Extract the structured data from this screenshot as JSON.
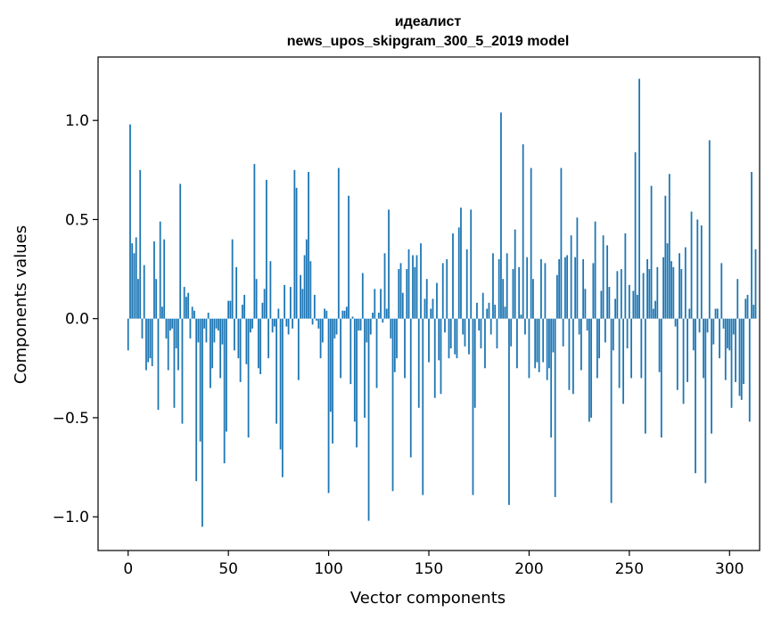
{
  "chart_data": {
    "type": "bar",
    "title_line1": "идеалист",
    "title_line2": "news_upos_skipgram_300_5_2019 model",
    "xlabel": "Vector components",
    "ylabel": "Components values",
    "xlim": [
      -15,
      315
    ],
    "ylim": [
      -1.17,
      1.32
    ],
    "xticks": [
      0,
      50,
      100,
      150,
      200,
      250,
      300
    ],
    "xtick_labels": [
      "0",
      "50",
      "100",
      "150",
      "200",
      "250",
      "300"
    ],
    "yticks": [
      -1.0,
      -0.5,
      0.0,
      0.5,
      1.0
    ],
    "ytick_labels": [
      "−1.0",
      "−0.5",
      "0.0",
      "0.5",
      "1.0"
    ],
    "bar_color": "#1f77b4",
    "grid": false,
    "legend": "none",
    "values": [
      -0.16,
      0.98,
      0.38,
      0.33,
      0.41,
      0.2,
      0.75,
      -0.1,
      0.27,
      -0.26,
      -0.22,
      -0.2,
      -0.24,
      0.39,
      0.2,
      -0.46,
      0.49,
      0.06,
      0.4,
      -0.1,
      -0.26,
      -0.06,
      -0.05,
      -0.45,
      -0.15,
      -0.26,
      0.68,
      -0.53,
      0.16,
      0.11,
      0.13,
      -0.1,
      0.06,
      0.04,
      -0.82,
      -0.12,
      -0.62,
      -1.05,
      -0.05,
      -0.12,
      0.03,
      -0.35,
      -0.25,
      -0.12,
      -0.05,
      -0.06,
      -0.3,
      -0.13,
      -0.73,
      -0.57,
      0.09,
      0.09,
      0.4,
      -0.16,
      0.26,
      -0.2,
      -0.32,
      0.07,
      0.12,
      -0.23,
      -0.6,
      -0.07,
      -0.05,
      0.78,
      0.2,
      -0.25,
      -0.28,
      0.08,
      0.15,
      0.7,
      -0.2,
      0.29,
      -0.07,
      -0.04,
      -0.53,
      0.05,
      -0.66,
      -0.8,
      0.17,
      -0.04,
      -0.08,
      0.16,
      -0.05,
      0.75,
      0.66,
      -0.31,
      0.22,
      0.15,
      0.32,
      0.4,
      0.74,
      0.29,
      -0.03,
      0.12,
      -0.01,
      -0.05,
      -0.2,
      -0.12,
      0.05,
      0.04,
      -0.88,
      -0.47,
      -0.63,
      -0.1,
      -0.08,
      0.76,
      -0.3,
      0.04,
      0.04,
      0.06,
      0.62,
      -0.33,
      0.01,
      -0.52,
      -0.65,
      -0.06,
      -0.06,
      0.23,
      -0.5,
      -0.12,
      -1.02,
      -0.08,
      0.03,
      0.15,
      -0.35,
      0.03,
      0.15,
      -0.02,
      0.33,
      0.05,
      0.55,
      -0.1,
      -0.87,
      -0.27,
      -0.2,
      0.25,
      0.28,
      0.13,
      -0.3,
      0.25,
      0.35,
      -0.7,
      0.32,
      0.26,
      0.32,
      -0.45,
      0.38,
      -0.89,
      0.1,
      0.2,
      -0.22,
      0.05,
      0.1,
      -0.4,
      0.18,
      -0.21,
      -0.38,
      0.28,
      -0.07,
      0.3,
      -0.2,
      -0.15,
      0.43,
      -0.18,
      -0.2,
      0.46,
      0.56,
      -0.08,
      -0.14,
      0.35,
      -0.18,
      0.55,
      -0.89,
      -0.45,
      0.08,
      -0.06,
      -0.15,
      0.13,
      -0.25,
      0.05,
      0.08,
      -0.08,
      0.33,
      0.07,
      -0.15,
      0.3,
      1.04,
      0.2,
      0.06,
      0.33,
      -0.94,
      -0.14,
      0.25,
      0.45,
      -0.25,
      0.26,
      0.02,
      0.88,
      -0.08,
      0.31,
      -0.3,
      0.76,
      0.2,
      -0.25,
      -0.22,
      -0.27,
      0.3,
      -0.22,
      0.28,
      -0.31,
      -0.25,
      -0.6,
      -0.17,
      -0.9,
      0.22,
      0.3,
      0.76,
      -0.14,
      0.31,
      0.32,
      -0.36,
      0.42,
      -0.38,
      0.31,
      0.51,
      -0.08,
      -0.26,
      0.3,
      0.15,
      -0.06,
      -0.52,
      -0.5,
      0.28,
      0.49,
      -0.3,
      -0.2,
      0.14,
      0.42,
      -0.12,
      0.37,
      0.16,
      -0.93,
      -0.16,
      0.1,
      0.24,
      -0.35,
      0.25,
      -0.43,
      0.43,
      -0.15,
      0.17,
      -0.3,
      0.14,
      0.84,
      0.12,
      1.21,
      -0.3,
      0.23,
      -0.58,
      0.3,
      0.25,
      0.67,
      0.05,
      0.09,
      0.26,
      -0.27,
      -0.6,
      0.31,
      0.62,
      0.38,
      0.73,
      0.29,
      0.26,
      -0.04,
      -0.36,
      0.33,
      0.25,
      -0.43,
      0.36,
      -0.32,
      0.05,
      0.54,
      -0.16,
      -0.78,
      0.5,
      -0.07,
      0.47,
      -0.3,
      -0.83,
      -0.07,
      0.9,
      -0.58,
      -0.13,
      0.05,
      0.05,
      -0.2,
      0.28,
      -0.05,
      -0.31,
      -0.15,
      -0.16,
      -0.45,
      -0.08,
      -0.32,
      0.2,
      -0.39,
      -0.41,
      -0.33,
      0.1,
      0.12,
      -0.52,
      0.74,
      0.07,
      0.35
    ]
  }
}
